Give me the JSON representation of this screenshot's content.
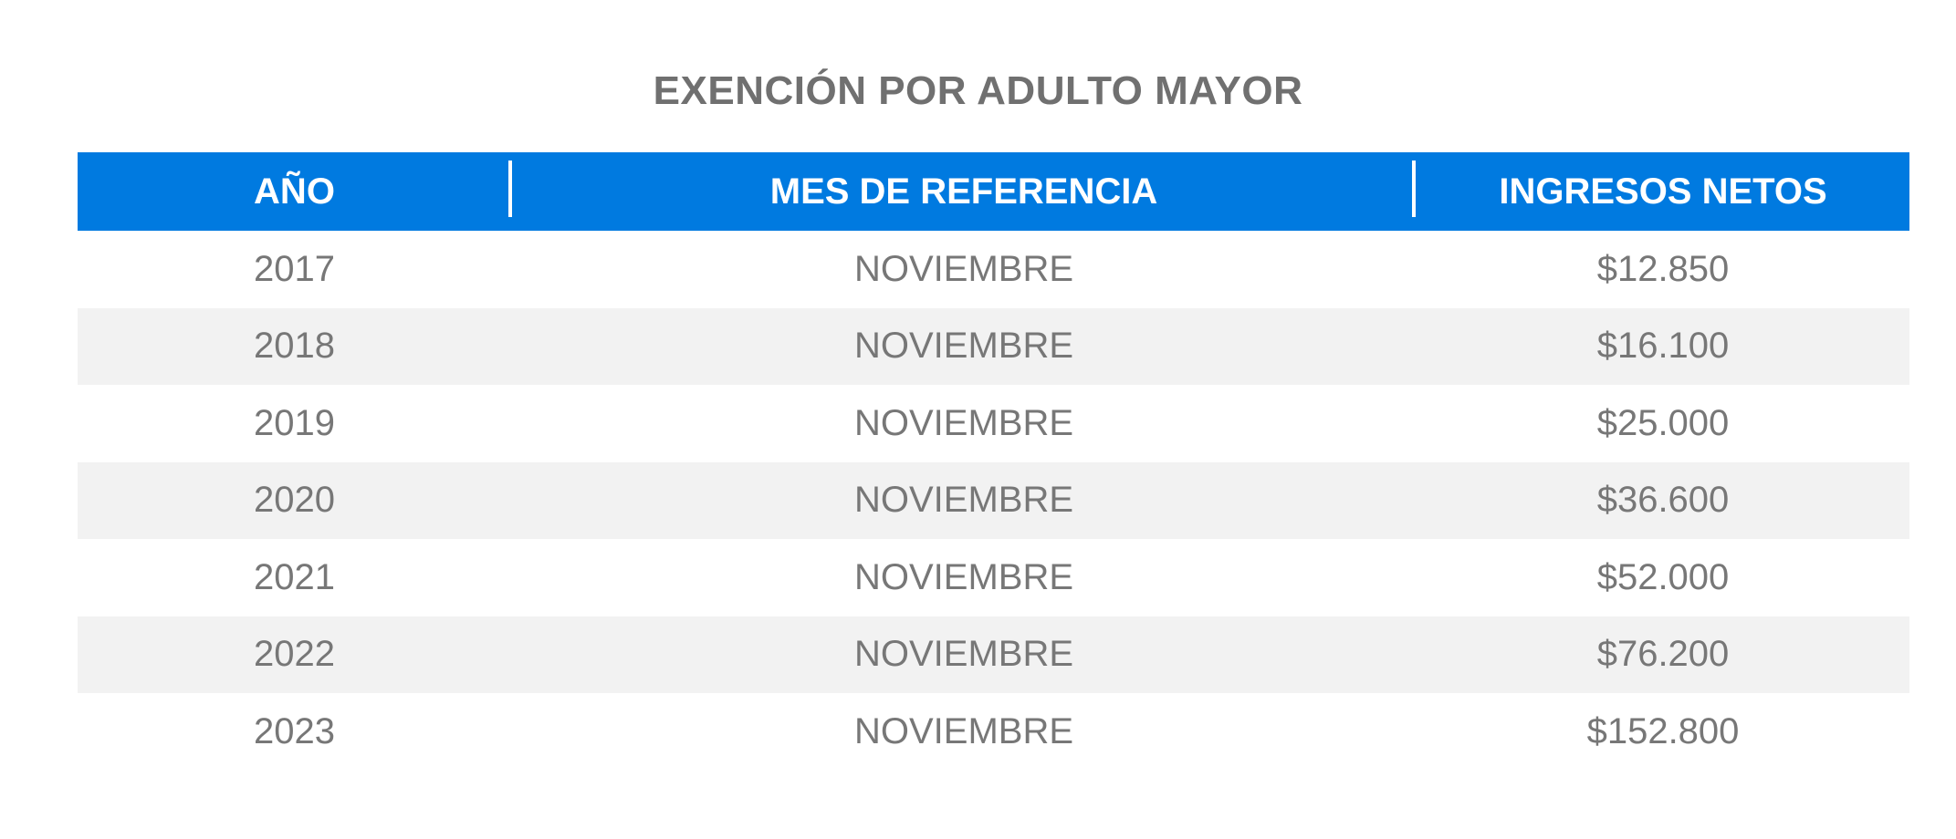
{
  "title": "EXENCIÓN POR ADULTO MAYOR",
  "table": {
    "headers": [
      "AÑO",
      "MES DE REFERENCIA",
      "INGRESOS NETOS"
    ],
    "rows": [
      [
        "2017",
        "NOVIEMBRE",
        "$12.850"
      ],
      [
        "2018",
        "NOVIEMBRE",
        "$16.100"
      ],
      [
        "2019",
        "NOVIEMBRE",
        "$25.000"
      ],
      [
        "2020",
        "NOVIEMBRE",
        "$36.600"
      ],
      [
        "2021",
        "NOVIEMBRE",
        "$52.000"
      ],
      [
        "2022",
        "NOVIEMBRE",
        "$76.200"
      ],
      [
        "2023",
        "NOVIEMBRE",
        "$152.800"
      ]
    ]
  },
  "colors": {
    "header_background": "#007ae0",
    "header_text": "#ffffff",
    "title_text": "#707070",
    "cell_text": "#777777",
    "alt_row_background": "#f2f2f2"
  }
}
